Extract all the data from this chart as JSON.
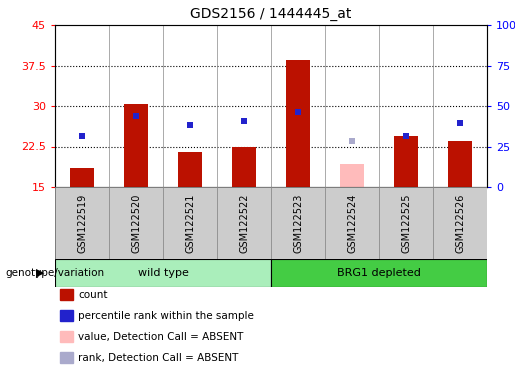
{
  "title": "GDS2156 / 1444445_at",
  "samples": [
    "GSM122519",
    "GSM122520",
    "GSM122521",
    "GSM122522",
    "GSM122523",
    "GSM122524",
    "GSM122525",
    "GSM122526"
  ],
  "count_values": [
    18.5,
    30.3,
    21.5,
    22.5,
    38.5,
    null,
    24.5,
    23.5
  ],
  "count_absent": [
    null,
    null,
    null,
    null,
    null,
    19.2,
    null,
    null
  ],
  "rank_values_left": [
    24.5,
    28.2,
    26.5,
    27.2,
    28.8,
    null,
    24.5,
    26.8
  ],
  "rank_absent_left": [
    null,
    null,
    null,
    null,
    null,
    23.5,
    null,
    null
  ],
  "ylim_left": [
    15,
    45
  ],
  "ylim_right": [
    0,
    100
  ],
  "yticks_left": [
    15,
    22.5,
    30,
    37.5,
    45
  ],
  "ytick_labels_left": [
    "15",
    "22.5",
    "30",
    "37.5",
    "45"
  ],
  "yticks_right": [
    0,
    25,
    50,
    75,
    100
  ],
  "ytick_labels_right": [
    "0",
    "25",
    "50",
    "75",
    "100%"
  ],
  "bar_color_red": "#bb1100",
  "bar_color_pink": "#ffbbbb",
  "rank_color_blue": "#2222cc",
  "rank_color_lightblue": "#aaaacc",
  "group1_label": "wild type",
  "group2_label": "BRG1 depleted",
  "group1_color": "#aaeebb",
  "group2_color": "#44cc44",
  "genotype_label": "genotype/variation",
  "legend_items": [
    {
      "label": "count",
      "color": "#bb1100"
    },
    {
      "label": "percentile rank within the sample",
      "color": "#2222cc"
    },
    {
      "label": "value, Detection Call = ABSENT",
      "color": "#ffbbbb"
    },
    {
      "label": "rank, Detection Call = ABSENT",
      "color": "#aaaacc"
    }
  ],
  "base_value": 15,
  "bar_width": 0.45,
  "marker_size": 5,
  "plot_bg": "#ffffff",
  "label_area_bg": "#cccccc",
  "fig_bg": "#ffffff"
}
